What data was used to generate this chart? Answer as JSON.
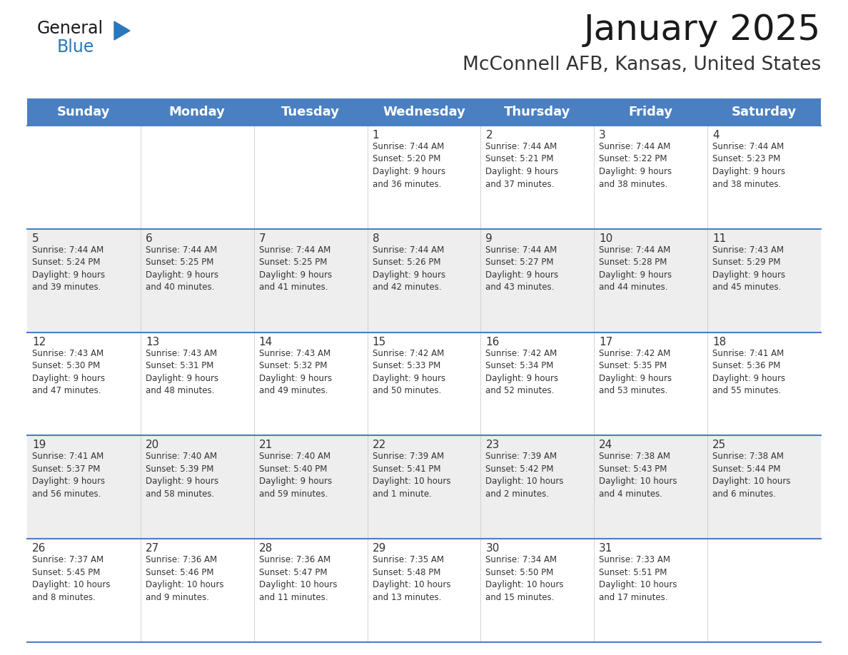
{
  "title": "January 2025",
  "subtitle": "McConnell AFB, Kansas, United States",
  "days_of_week": [
    "Sunday",
    "Monday",
    "Tuesday",
    "Wednesday",
    "Thursday",
    "Friday",
    "Saturday"
  ],
  "header_bg": "#4A7FC1",
  "header_text": "#FFFFFF",
  "row_bg_odd": "#FFFFFF",
  "row_bg_even": "#EEEEEE",
  "cell_text_color": "#333333",
  "day_number_color": "#333333",
  "border_color": "#4A7FC1",
  "logo_general_color": "#1a1a1a",
  "logo_blue_color": "#2878BE",
  "logo_triangle_color": "#2878BE",
  "calendar": [
    [
      {
        "day": "",
        "info": ""
      },
      {
        "day": "",
        "info": ""
      },
      {
        "day": "",
        "info": ""
      },
      {
        "day": "1",
        "info": "Sunrise: 7:44 AM\nSunset: 5:20 PM\nDaylight: 9 hours\nand 36 minutes."
      },
      {
        "day": "2",
        "info": "Sunrise: 7:44 AM\nSunset: 5:21 PM\nDaylight: 9 hours\nand 37 minutes."
      },
      {
        "day": "3",
        "info": "Sunrise: 7:44 AM\nSunset: 5:22 PM\nDaylight: 9 hours\nand 38 minutes."
      },
      {
        "day": "4",
        "info": "Sunrise: 7:44 AM\nSunset: 5:23 PM\nDaylight: 9 hours\nand 38 minutes."
      }
    ],
    [
      {
        "day": "5",
        "info": "Sunrise: 7:44 AM\nSunset: 5:24 PM\nDaylight: 9 hours\nand 39 minutes."
      },
      {
        "day": "6",
        "info": "Sunrise: 7:44 AM\nSunset: 5:25 PM\nDaylight: 9 hours\nand 40 minutes."
      },
      {
        "day": "7",
        "info": "Sunrise: 7:44 AM\nSunset: 5:25 PM\nDaylight: 9 hours\nand 41 minutes."
      },
      {
        "day": "8",
        "info": "Sunrise: 7:44 AM\nSunset: 5:26 PM\nDaylight: 9 hours\nand 42 minutes."
      },
      {
        "day": "9",
        "info": "Sunrise: 7:44 AM\nSunset: 5:27 PM\nDaylight: 9 hours\nand 43 minutes."
      },
      {
        "day": "10",
        "info": "Sunrise: 7:44 AM\nSunset: 5:28 PM\nDaylight: 9 hours\nand 44 minutes."
      },
      {
        "day": "11",
        "info": "Sunrise: 7:43 AM\nSunset: 5:29 PM\nDaylight: 9 hours\nand 45 minutes."
      }
    ],
    [
      {
        "day": "12",
        "info": "Sunrise: 7:43 AM\nSunset: 5:30 PM\nDaylight: 9 hours\nand 47 minutes."
      },
      {
        "day": "13",
        "info": "Sunrise: 7:43 AM\nSunset: 5:31 PM\nDaylight: 9 hours\nand 48 minutes."
      },
      {
        "day": "14",
        "info": "Sunrise: 7:43 AM\nSunset: 5:32 PM\nDaylight: 9 hours\nand 49 minutes."
      },
      {
        "day": "15",
        "info": "Sunrise: 7:42 AM\nSunset: 5:33 PM\nDaylight: 9 hours\nand 50 minutes."
      },
      {
        "day": "16",
        "info": "Sunrise: 7:42 AM\nSunset: 5:34 PM\nDaylight: 9 hours\nand 52 minutes."
      },
      {
        "day": "17",
        "info": "Sunrise: 7:42 AM\nSunset: 5:35 PM\nDaylight: 9 hours\nand 53 minutes."
      },
      {
        "day": "18",
        "info": "Sunrise: 7:41 AM\nSunset: 5:36 PM\nDaylight: 9 hours\nand 55 minutes."
      }
    ],
    [
      {
        "day": "19",
        "info": "Sunrise: 7:41 AM\nSunset: 5:37 PM\nDaylight: 9 hours\nand 56 minutes."
      },
      {
        "day": "20",
        "info": "Sunrise: 7:40 AM\nSunset: 5:39 PM\nDaylight: 9 hours\nand 58 minutes."
      },
      {
        "day": "21",
        "info": "Sunrise: 7:40 AM\nSunset: 5:40 PM\nDaylight: 9 hours\nand 59 minutes."
      },
      {
        "day": "22",
        "info": "Sunrise: 7:39 AM\nSunset: 5:41 PM\nDaylight: 10 hours\nand 1 minute."
      },
      {
        "day": "23",
        "info": "Sunrise: 7:39 AM\nSunset: 5:42 PM\nDaylight: 10 hours\nand 2 minutes."
      },
      {
        "day": "24",
        "info": "Sunrise: 7:38 AM\nSunset: 5:43 PM\nDaylight: 10 hours\nand 4 minutes."
      },
      {
        "day": "25",
        "info": "Sunrise: 7:38 AM\nSunset: 5:44 PM\nDaylight: 10 hours\nand 6 minutes."
      }
    ],
    [
      {
        "day": "26",
        "info": "Sunrise: 7:37 AM\nSunset: 5:45 PM\nDaylight: 10 hours\nand 8 minutes."
      },
      {
        "day": "27",
        "info": "Sunrise: 7:36 AM\nSunset: 5:46 PM\nDaylight: 10 hours\nand 9 minutes."
      },
      {
        "day": "28",
        "info": "Sunrise: 7:36 AM\nSunset: 5:47 PM\nDaylight: 10 hours\nand 11 minutes."
      },
      {
        "day": "29",
        "info": "Sunrise: 7:35 AM\nSunset: 5:48 PM\nDaylight: 10 hours\nand 13 minutes."
      },
      {
        "day": "30",
        "info": "Sunrise: 7:34 AM\nSunset: 5:50 PM\nDaylight: 10 hours\nand 15 minutes."
      },
      {
        "day": "31",
        "info": "Sunrise: 7:33 AM\nSunset: 5:51 PM\nDaylight: 10 hours\nand 17 minutes."
      },
      {
        "day": "",
        "info": ""
      }
    ]
  ],
  "title_fontsize": 36,
  "subtitle_fontsize": 19,
  "header_fontsize": 13,
  "day_number_fontsize": 11,
  "cell_info_fontsize": 8.5
}
